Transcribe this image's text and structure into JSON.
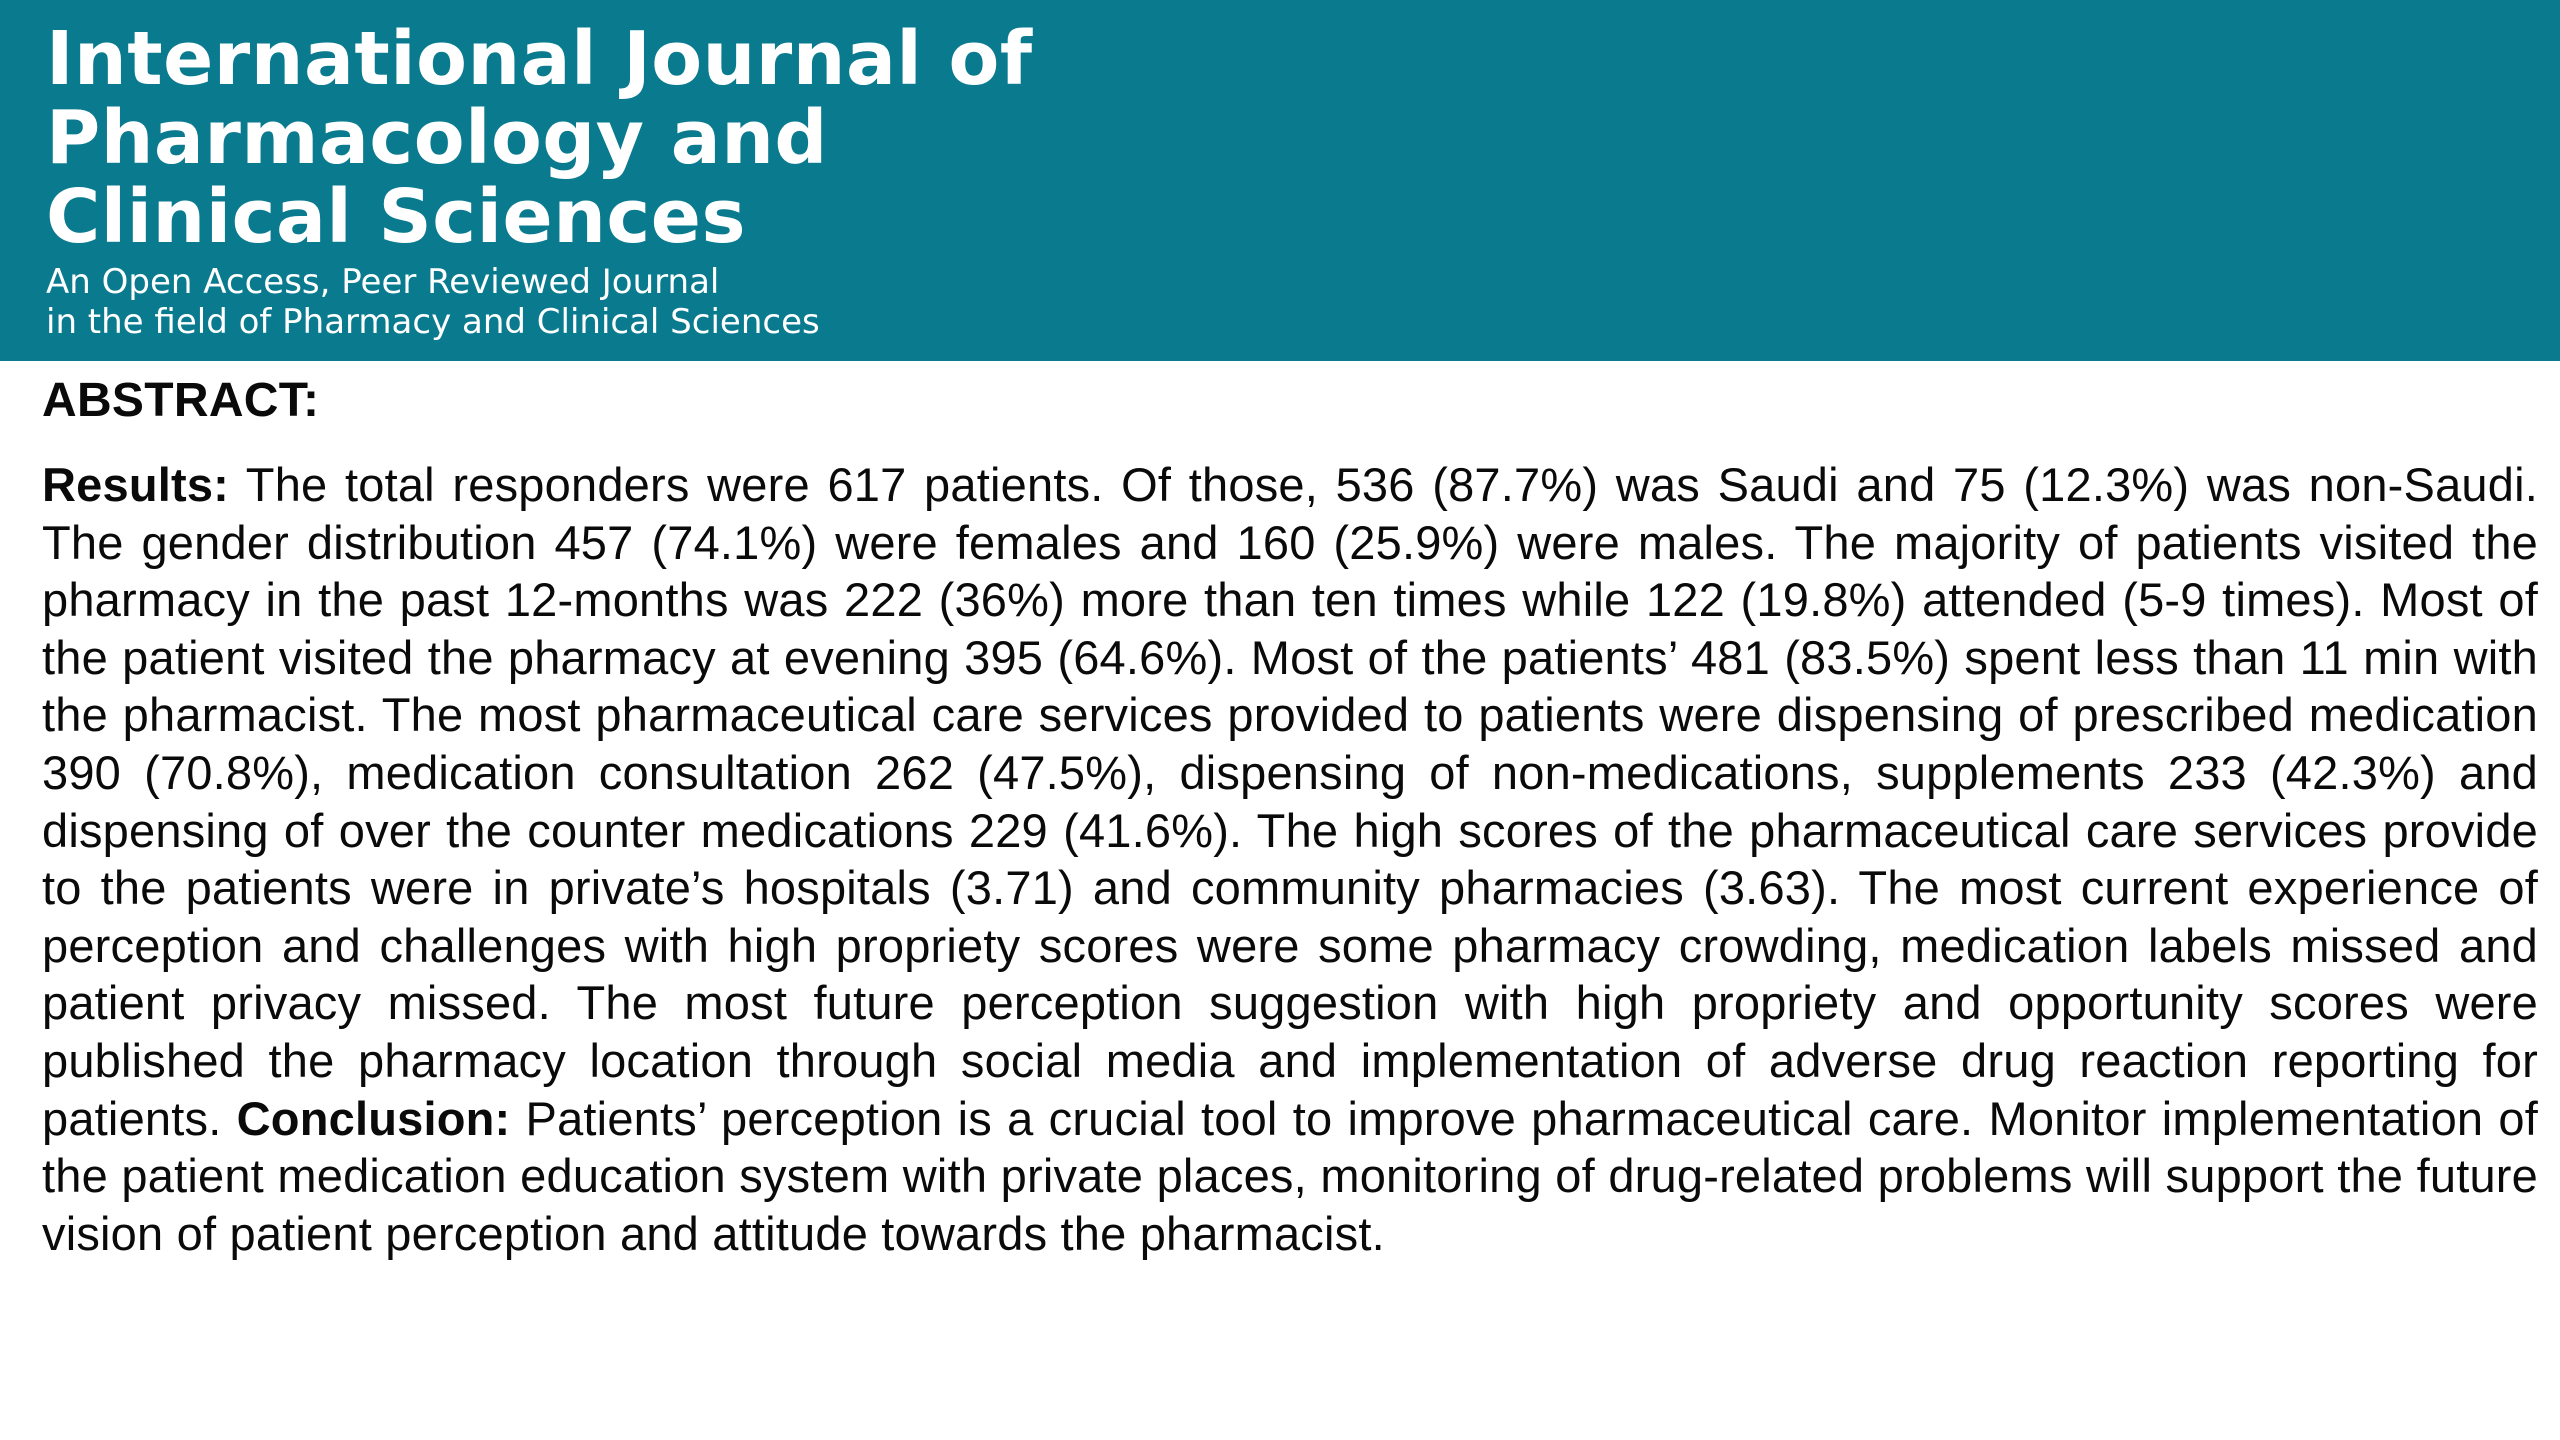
{
  "journal": {
    "title_lines": [
      "International Journal of",
      "Pharmacology and",
      "Clinical Sciences"
    ],
    "subtitle_lines": [
      "An Open Access, Peer Reviewed Journal",
      "in the field of Pharmacy and Clinical Sciences"
    ]
  },
  "abstract": {
    "heading": "ABSTRACT:",
    "results_label": "Results:",
    "results_text": " The total responders were 617 patients. Of those, 536 (87.7%) was Saudi and 75 (12.3%) was non-Saudi. The gender distribution 457 (74.1%) were females and 160 (25.9%) were males. The majority of patients visited the pharmacy in the past 12-months was 222 (36%) more than ten times while 122 (19.8%) attended (5-9 times). Most of the patient visited the pharmacy at evening 395 (64.6%). Most of the patients’ 481 (83.5%) spent less than 11 min with the pharmacist. The most pharmaceutical care services provided to patients were dispensing of prescribed medication 390 (70.8%), medication consultation 262 (47.5%), dispensing of non-medications, supplements 233 (42.3%) and dispensing of over the counter medications 229 (41.6%). The high scores of the pharmaceutical care services provide to the patients were in private’s hospitals (3.71) and community pharmacies (3.63). The most current experience of perception and challenges with high propriety scores were some pharmacy crowding, medication labels missed and patient privacy missed. The most future perception suggestion with high propriety and opportunity scores were published the pharmacy location through social media and implementation of adverse drug reaction reporting for patients.",
    "conclusion_label": "Conclusion:",
    "conclusion_text": " Patients’ perception is a crucial tool to improve pharmaceutical care. Monitor implementation of the patient medication education system with private places, monitoring of drug-related problems will support the future vision of patient perception and attitude towards the pharmacist."
  },
  "colors": {
    "banner_bg": "#0a7a8f",
    "banner_text": "#ffffff",
    "body_text": "#0a0a0a"
  }
}
